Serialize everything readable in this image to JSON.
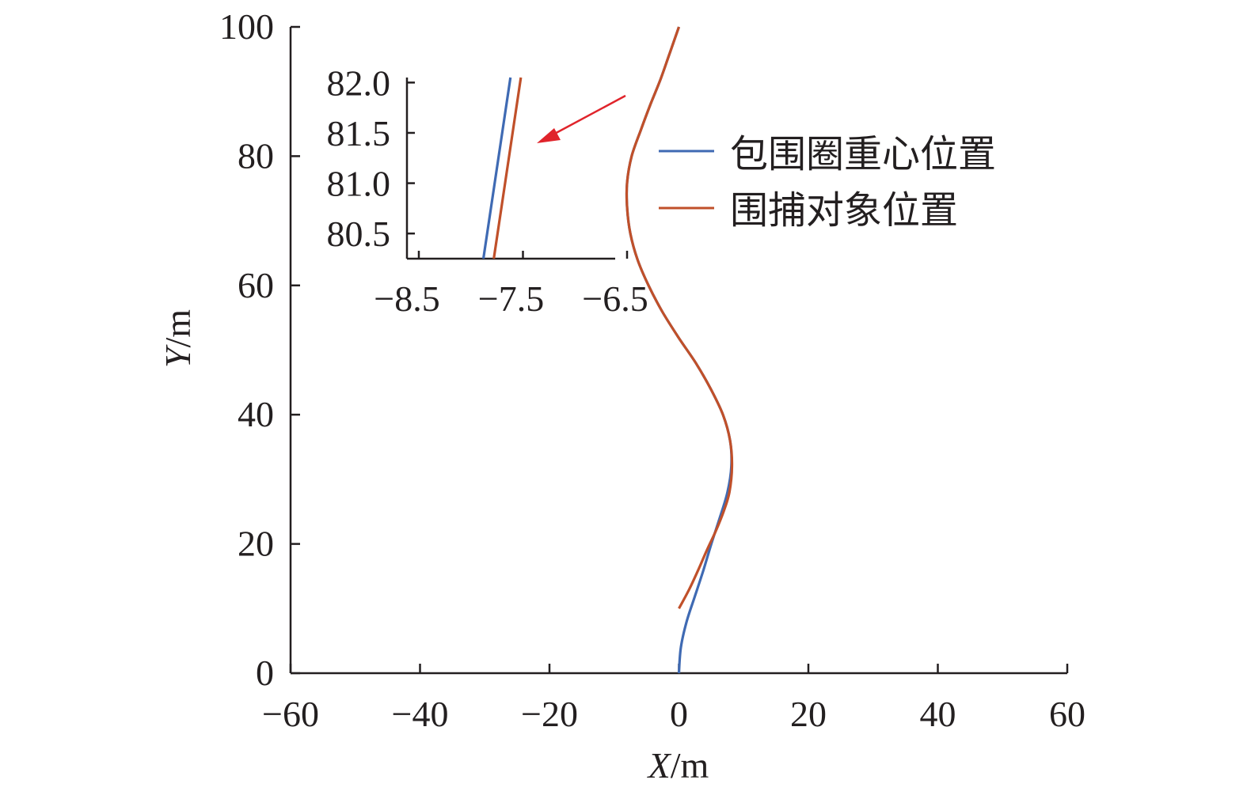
{
  "chart_data": [
    {
      "type": "line",
      "xlabel": {
        "italic": "X",
        "unit": "/m"
      },
      "ylabel": {
        "italic": "Y",
        "unit": "/m"
      },
      "xlim": [
        -60,
        60
      ],
      "ylim": [
        0,
        100
      ],
      "xticks": [
        -60,
        -40,
        -20,
        0,
        20,
        40,
        60
      ],
      "yticks": [
        0,
        20,
        40,
        60,
        80,
        100
      ],
      "xtick_labels": [
        "−60",
        "−40",
        "−20",
        "0",
        "20",
        "40",
        "60"
      ],
      "ytick_labels": [
        "0",
        "20",
        "40",
        "60",
        "80",
        "100"
      ],
      "legend": {
        "placement": "top-right"
      },
      "series": [
        {
          "name": "包围圈重心位置",
          "color": "#3f6ab3",
          "points": [
            [
              0,
              0
            ],
            [
              0.3,
              4
            ],
            [
              1.2,
              8
            ],
            [
              2.5,
              12
            ],
            [
              3.8,
              16
            ],
            [
              5,
              20
            ],
            [
              6.3,
              24
            ],
            [
              7.5,
              28
            ],
            [
              8.1,
              32
            ],
            [
              7.9,
              36
            ],
            [
              6.8,
              40
            ],
            [
              4.9,
              44
            ],
            [
              2.6,
              48
            ],
            [
              -0.1,
              52
            ],
            [
              -2.6,
              56
            ],
            [
              -4.7,
              60
            ],
            [
              -6.4,
              64
            ],
            [
              -7.5,
              68
            ],
            [
              -8,
              72
            ],
            [
              -8,
              76
            ],
            [
              -7.3,
              80
            ],
            [
              -5.9,
              84
            ],
            [
              -4.4,
              88
            ],
            [
              -2.8,
              92
            ],
            [
              -1.4,
              96
            ],
            [
              0,
              100
            ]
          ]
        },
        {
          "name": "围捕对象位置",
          "color": "#c0502a",
          "points": [
            [
              0,
              10
            ],
            [
              1.6,
              13
            ],
            [
              3,
              16
            ],
            [
              4.3,
              19
            ],
            [
              5.7,
              22
            ],
            [
              6.9,
              25
            ],
            [
              7.8,
              28
            ],
            [
              8.2,
              32
            ],
            [
              7.9,
              36
            ],
            [
              6.8,
              40
            ],
            [
              4.9,
              44
            ],
            [
              2.6,
              48
            ],
            [
              -0.1,
              52
            ],
            [
              -2.6,
              56
            ],
            [
              -4.7,
              60
            ],
            [
              -6.4,
              64
            ],
            [
              -7.5,
              68
            ],
            [
              -8,
              72
            ],
            [
              -8,
              76
            ],
            [
              -7.3,
              80
            ],
            [
              -5.9,
              84
            ],
            [
              -4.4,
              88
            ],
            [
              -2.8,
              92
            ],
            [
              -1.4,
              96
            ],
            [
              0,
              100
            ]
          ]
        }
      ]
    },
    {
      "type": "line",
      "role": "inset",
      "xlim": [
        -8.5,
        -6.5
      ],
      "ylim": [
        80.25,
        82.05
      ],
      "xticks": [
        -8.5,
        -7.5,
        -6.5
      ],
      "yticks": [
        80.5,
        81.0,
        81.5,
        82.0
      ],
      "xtick_labels": [
        "−8.5",
        "−7.5",
        "−6.5"
      ],
      "ytick_labels": [
        "80.5",
        "81.0",
        "81.5",
        "82.0"
      ],
      "series": [
        {
          "name": "包围圈重心位置",
          "color": "#3f6ab3",
          "points": [
            [
              -7.88,
              80.25
            ],
            [
              -7.62,
              82.05
            ]
          ]
        },
        {
          "name": "围捕对象位置",
          "color": "#c0502a",
          "points": [
            [
              -7.78,
              80.25
            ],
            [
              -7.52,
              82.05
            ]
          ]
        }
      ]
    }
  ],
  "annotation": {
    "arrow_color": "#e0242b"
  }
}
